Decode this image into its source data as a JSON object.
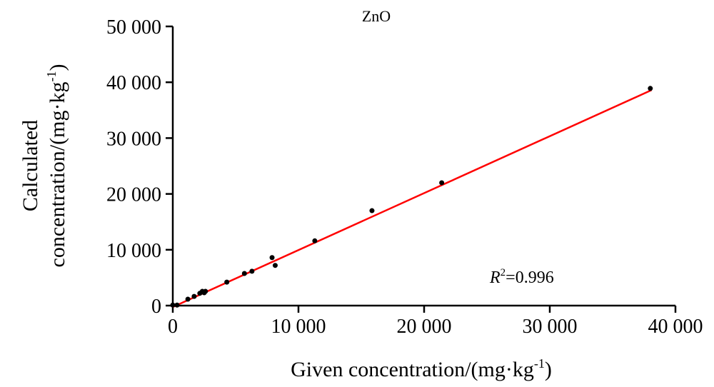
{
  "chart_data": {
    "type": "scatter",
    "title": "ZnO",
    "xlabel": "Given concentration/(mg·kg",
    "xlabel_sup": "-1",
    "xlabel_end": ")",
    "ylabel_line1": "Calculated",
    "ylabel_line2": "concentration/(mg·kg",
    "ylabel_sup": "-1",
    "ylabel_end": ")",
    "xlim": [
      0,
      40000
    ],
    "ylim": [
      0,
      50000
    ],
    "xticks": [
      0,
      10000,
      20000,
      30000,
      40000
    ],
    "xtick_labels": [
      "0",
      "10 000",
      "20 000",
      "30 000",
      "40 000"
    ],
    "yticks": [
      0,
      10000,
      20000,
      30000,
      40000,
      50000
    ],
    "ytick_labels": [
      "0",
      "10 000",
      "20 000",
      "30 000",
      "40 000",
      "50 000"
    ],
    "grid": false,
    "points": [
      {
        "x": 0,
        "y": 100
      },
      {
        "x": 340,
        "y": 100
      },
      {
        "x": 1200,
        "y": 1150
      },
      {
        "x": 1700,
        "y": 1650
      },
      {
        "x": 2150,
        "y": 2200
      },
      {
        "x": 2350,
        "y": 2550
      },
      {
        "x": 2500,
        "y": 2300
      },
      {
        "x": 2600,
        "y": 2550
      },
      {
        "x": 4300,
        "y": 4200
      },
      {
        "x": 5700,
        "y": 5750
      },
      {
        "x": 6300,
        "y": 6150
      },
      {
        "x": 7900,
        "y": 8600
      },
      {
        "x": 8150,
        "y": 7200
      },
      {
        "x": 11300,
        "y": 11600
      },
      {
        "x": 15850,
        "y": 17000
      },
      {
        "x": 21400,
        "y": 22000
      },
      {
        "x": 38000,
        "y": 38900
      }
    ],
    "fit_line": {
      "x": [
        0,
        38100
      ],
      "y": [
        -250,
        38600
      ],
      "color": "#ff0000"
    },
    "annotation_R": "R",
    "annotation_sup": "2",
    "annotation_value": "=0.996",
    "point_color": "#000000"
  }
}
